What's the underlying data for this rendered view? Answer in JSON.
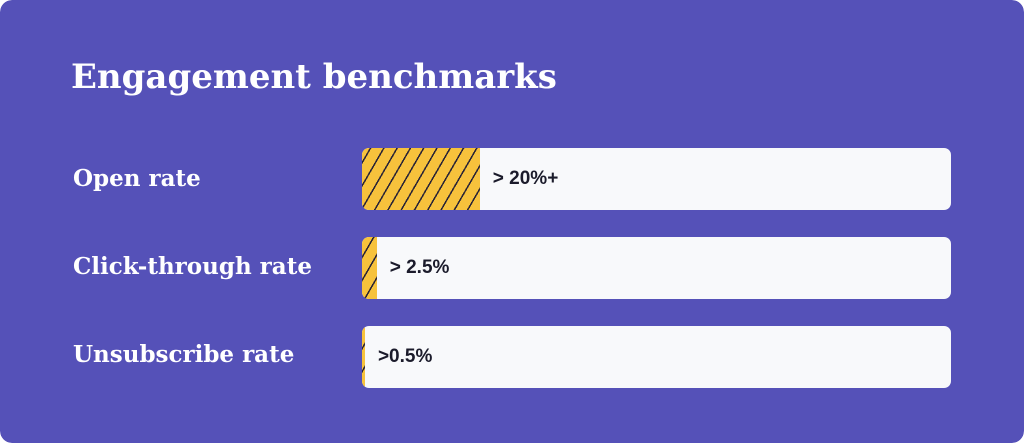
{
  "colors": {
    "background": "#5551b8",
    "track": "#f8f9fb",
    "fill": "#f7c23c",
    "hatch": "#2a2436",
    "title_text": "#ffffff",
    "value_text": "#1b1b2b"
  },
  "chart_data": {
    "type": "bar",
    "orientation": "horizontal",
    "title": "Engagement benchmarks",
    "categories": [
      "Open rate",
      "Click-through rate",
      "Unsubscribe rate"
    ],
    "values": [
      20,
      2.5,
      0.5
    ],
    "value_labels": [
      "> 20%+",
      "> 2.5%",
      ">0.5%"
    ],
    "xlim": [
      0,
      100
    ],
    "unit": "%",
    "grid": false,
    "legend": "none"
  }
}
